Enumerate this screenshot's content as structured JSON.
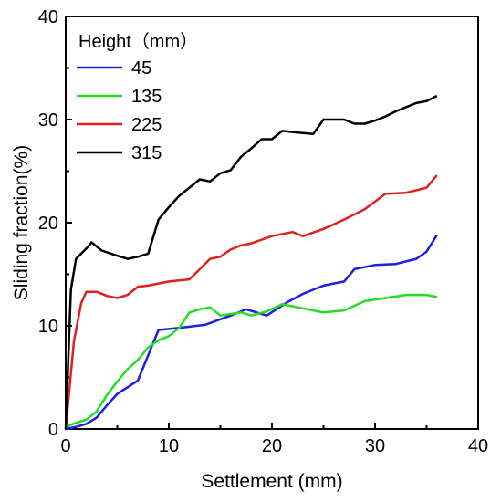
{
  "chart_data": {
    "type": "line",
    "xlabel": "Settlement (mm)",
    "ylabel": "Sliding fraction(%)",
    "xlim": [
      0,
      40
    ],
    "ylim": [
      0,
      40
    ],
    "xticks": [
      "0",
      "10",
      "20",
      "30",
      "40"
    ],
    "yticks": [
      "0",
      "10",
      "20",
      "30",
      "40"
    ],
    "grid": false,
    "legend": {
      "title": "Height（mm）",
      "placement": "top-left"
    },
    "series": [
      {
        "name": "45",
        "color": "#1f1fe0",
        "points": [
          [
            0,
            0
          ],
          [
            1,
            0.2
          ],
          [
            2,
            0.5
          ],
          [
            3,
            1.1
          ],
          [
            4,
            2.3
          ],
          [
            5,
            3.4
          ],
          [
            7,
            4.7
          ],
          [
            9,
            9.6
          ],
          [
            11,
            9.8
          ],
          [
            13.5,
            10.1
          ],
          [
            16,
            11.0
          ],
          [
            17.5,
            11.6
          ],
          [
            19.5,
            11.0
          ],
          [
            21.5,
            12.3
          ],
          [
            23,
            13.1
          ],
          [
            25,
            13.9
          ],
          [
            27,
            14.3
          ],
          [
            28,
            15.5
          ],
          [
            30,
            15.9
          ],
          [
            32,
            16.0
          ],
          [
            34,
            16.5
          ],
          [
            35,
            17.2
          ],
          [
            36,
            18.8
          ]
        ]
      },
      {
        "name": "135",
        "color": "#22dd22",
        "points": [
          [
            0,
            0.2
          ],
          [
            1,
            0.6
          ],
          [
            2,
            0.9
          ],
          [
            3,
            1.7
          ],
          [
            4,
            3.3
          ],
          [
            5,
            4.6
          ],
          [
            6,
            5.8
          ],
          [
            7,
            6.7
          ],
          [
            8,
            7.9
          ],
          [
            9,
            8.6
          ],
          [
            10,
            9.0
          ],
          [
            11,
            9.8
          ],
          [
            12,
            11.3
          ],
          [
            13,
            11.6
          ],
          [
            14,
            11.8
          ],
          [
            15,
            11.0
          ],
          [
            17,
            11.3
          ],
          [
            18,
            11.0
          ],
          [
            19.5,
            11.4
          ],
          [
            21,
            12.1
          ],
          [
            23,
            11.7
          ],
          [
            24,
            11.5
          ],
          [
            25,
            11.3
          ],
          [
            27,
            11.5
          ],
          [
            29,
            12.4
          ],
          [
            31,
            12.7
          ],
          [
            33,
            13.0
          ],
          [
            34,
            13.0
          ],
          [
            35,
            13.0
          ],
          [
            36,
            12.8
          ]
        ]
      },
      {
        "name": "225",
        "color": "#e01f1f",
        "points": [
          [
            0,
            0
          ],
          [
            0.8,
            8.5
          ],
          [
            1.5,
            12.2
          ],
          [
            2,
            13.3
          ],
          [
            3,
            13.3
          ],
          [
            4,
            12.9
          ],
          [
            5,
            12.7
          ],
          [
            6,
            13.0
          ],
          [
            7,
            13.8
          ],
          [
            8,
            13.9
          ],
          [
            10,
            14.3
          ],
          [
            12,
            14.5
          ],
          [
            14,
            16.5
          ],
          [
            15,
            16.7
          ],
          [
            16,
            17.4
          ],
          [
            17,
            17.8
          ],
          [
            18,
            18.0
          ],
          [
            20,
            18.7
          ],
          [
            22,
            19.1
          ],
          [
            23,
            18.7
          ],
          [
            25,
            19.4
          ],
          [
            27,
            20.3
          ],
          [
            29,
            21.3
          ],
          [
            31,
            22.8
          ],
          [
            33,
            22.9
          ],
          [
            35,
            23.4
          ],
          [
            36,
            24.6
          ]
        ]
      },
      {
        "name": "315",
        "color": "#000000",
        "points": [
          [
            0,
            0
          ],
          [
            0.5,
            13.5
          ],
          [
            1,
            16.5
          ],
          [
            2,
            17.5
          ],
          [
            2.5,
            18.1
          ],
          [
            3.5,
            17.3
          ],
          [
            5,
            16.8
          ],
          [
            6,
            16.5
          ],
          [
            7,
            16.7
          ],
          [
            8,
            17.0
          ],
          [
            9,
            20.3
          ],
          [
            10,
            21.5
          ],
          [
            11,
            22.6
          ],
          [
            12,
            23.4
          ],
          [
            13,
            24.2
          ],
          [
            14,
            24.0
          ],
          [
            15,
            24.8
          ],
          [
            16,
            25.1
          ],
          [
            17,
            26.4
          ],
          [
            18,
            27.2
          ],
          [
            19,
            28.1
          ],
          [
            20,
            28.1
          ],
          [
            21,
            28.9
          ],
          [
            22,
            28.8
          ],
          [
            23,
            28.7
          ],
          [
            24,
            28.6
          ],
          [
            25,
            30.0
          ],
          [
            26,
            30.0
          ],
          [
            27,
            30.0
          ],
          [
            28,
            29.6
          ],
          [
            29,
            29.6
          ],
          [
            30,
            29.9
          ],
          [
            31,
            30.3
          ],
          [
            32,
            30.8
          ],
          [
            33,
            31.2
          ],
          [
            34,
            31.6
          ],
          [
            35,
            31.8
          ],
          [
            36,
            32.3
          ]
        ]
      }
    ]
  }
}
